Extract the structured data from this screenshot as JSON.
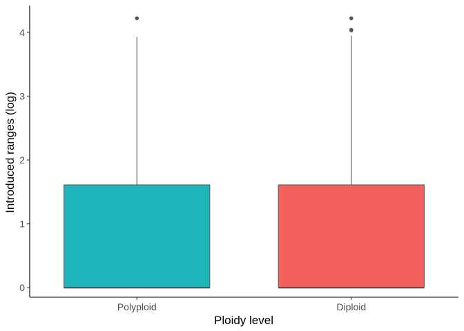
{
  "chart_data": {
    "type": "box",
    "title": "",
    "xlabel": "Ploidy level",
    "ylabel": "Introduced ranges (log)",
    "ylim": [
      -0.15,
      4.42
    ],
    "yticks": [
      0,
      1,
      2,
      3,
      4
    ],
    "grid": false,
    "legend": "none",
    "categories": [
      "Polyploid",
      "Diploid"
    ],
    "series": [
      {
        "category": "Polyploid",
        "color": "#1bb5ba",
        "min": 0,
        "q1": 0,
        "median": 0,
        "q3": 1.61,
        "max": 3.93,
        "outliers": [
          4.22
        ]
      },
      {
        "category": "Diploid",
        "color": "#f2605c",
        "min": 0,
        "q1": 0,
        "median": 0,
        "q3": 1.61,
        "max": 3.95,
        "outliers": [
          4.03,
          4.04,
          4.22
        ]
      }
    ]
  }
}
